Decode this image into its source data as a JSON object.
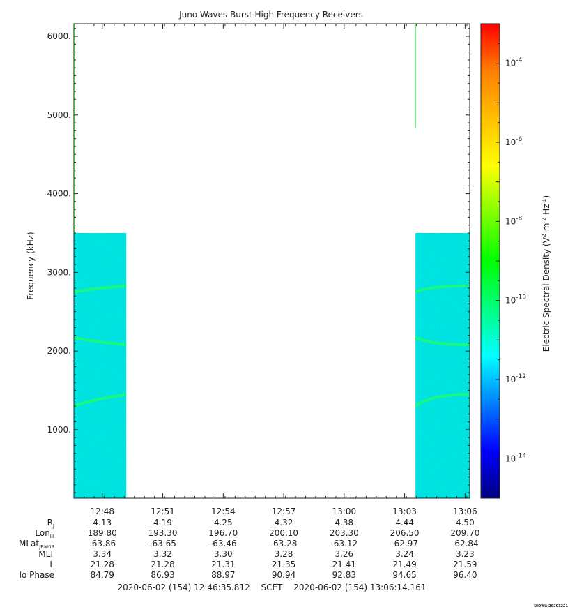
{
  "chart_data": {
    "type": "heatmap",
    "title": "Juno Waves Burst High Frequency Receivers",
    "ylabel": "Frequency (kHz)",
    "xlabel": "",
    "y_ticks": [
      "1000.",
      "2000.",
      "3000.",
      "4000.",
      "5000.",
      "6000."
    ],
    "y_tick_values": [
      1000,
      2000,
      3000,
      4000,
      5000,
      6000
    ],
    "ylim": [
      130,
      6160
    ],
    "x_ticks": [
      "12:48",
      "12:51",
      "12:54",
      "12:57",
      "13:00",
      "13:03",
      "13:06"
    ],
    "x_tick_minutes": [
      1.41,
      4.41,
      7.41,
      10.41,
      13.41,
      16.41,
      19.41
    ],
    "xlim_minutes": [
      0,
      19.64
    ],
    "data_blocks": [
      {
        "start_min": 0.0,
        "end_min": 2.6,
        "freq_min": 130,
        "freq_max": 3500,
        "log_density": -11.8
      },
      {
        "start_min": 16.95,
        "end_min": 19.64,
        "freq_min": 130,
        "freq_max": 3500,
        "log_density": -11.8
      }
    ],
    "emission_lines_khz": [
      {
        "freq_start": 2750,
        "freq_end": 2830,
        "log_density": -10.6
      },
      {
        "freq_start": 2170,
        "freq_end": 2080,
        "log_density": -11.0
      },
      {
        "freq_start": 1300,
        "freq_end": 1450,
        "log_density": -10.2
      }
    ],
    "spikes": [
      {
        "time_min": 0.05,
        "freq_min": 3500,
        "freq_max": 6160,
        "log_density": -8.5
      },
      {
        "time_min": 16.95,
        "freq_min": 4830,
        "freq_max": 6160,
        "log_density": -8.5
      }
    ],
    "colorbar": {
      "label": "Electric Spectral Density (V² m⁻² Hz⁻¹)",
      "label_main": "Electric Spectral Density (V",
      "label_sup1": "2",
      "label_mid": " m",
      "label_sup2": "-2",
      "label_mid2": " Hz",
      "label_sup3": "-1",
      "label_end": ")",
      "log_min": -15.0,
      "log_max": -3.0,
      "ticks": [
        {
          "base": "10",
          "exp": "-4",
          "log": -4
        },
        {
          "base": "10",
          "exp": "-6",
          "log": -6
        },
        {
          "base": "10",
          "exp": "-8",
          "log": -8
        },
        {
          "base": "10",
          "exp": "-10",
          "log": -10
        },
        {
          "base": "10",
          "exp": "-12",
          "log": -12
        },
        {
          "base": "10",
          "exp": "-14",
          "log": -14
        }
      ],
      "colors": [
        "#000080",
        "#0000ff",
        "#0080ff",
        "#00ffff",
        "#00ff80",
        "#00ff00",
        "#80ff00",
        "#ffff00",
        "#ffc000",
        "#ff8000",
        "#ff0000"
      ],
      "data_color": "#00e5e0",
      "line_color": "#20ff60",
      "spike_color": "#20ff40"
    }
  },
  "ephemeris": {
    "rows": [
      {
        "label": "R",
        "sub": "J",
        "values": [
          "4.13",
          "4.19",
          "4.25",
          "4.32",
          "4.38",
          "4.44",
          "4.50"
        ]
      },
      {
        "label": "Lon",
        "sub": "III",
        "values": [
          "189.80",
          "193.30",
          "196.70",
          "200.10",
          "203.30",
          "206.50",
          "209.70"
        ]
      },
      {
        "label": "MLat",
        "sub": "JRM09",
        "values": [
          "-63.86",
          "-63.65",
          "-63.46",
          "-63.28",
          "-63.12",
          "-62.97",
          "-62.84"
        ]
      },
      {
        "label": "MLT",
        "sub": "",
        "values": [
          "3.34",
          "3.32",
          "3.30",
          "3.28",
          "3.26",
          "3.24",
          "3.23"
        ]
      },
      {
        "label": "L",
        "sub": "",
        "values": [
          "21.28",
          "21.28",
          "21.31",
          "21.35",
          "21.41",
          "21.49",
          "21.59"
        ]
      },
      {
        "label": "Io Phase",
        "sub": "",
        "values": [
          "84.79",
          "86.93",
          "88.97",
          "90.94",
          "92.83",
          "94.65",
          "96.40"
        ]
      }
    ]
  },
  "time_range": {
    "start": "2020-06-02 (154) 12:46:35.812",
    "frame": "SCET",
    "end": "2020-06-02 (154) 13:06:14.161"
  },
  "credit": "UIOWA 20201221"
}
